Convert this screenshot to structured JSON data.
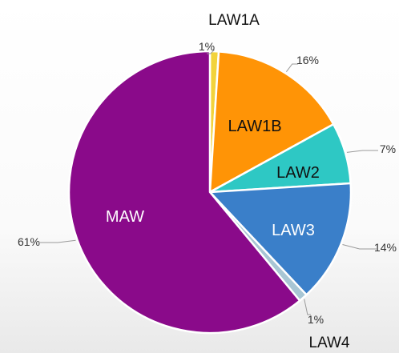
{
  "chart_data": {
    "type": "pie",
    "title": "",
    "slices": [
      {
        "label": "LAW1A",
        "value": 1,
        "pct_label": "1%",
        "color": "#f2d33c"
      },
      {
        "label": "LAW1B",
        "value": 16,
        "pct_label": "16%",
        "color": "#ff9406"
      },
      {
        "label": "LAW2",
        "value": 7,
        "pct_label": "7%",
        "color": "#2ec8c4"
      },
      {
        "label": "LAW3",
        "value": 14,
        "pct_label": "14%",
        "color": "#3a7fc9"
      },
      {
        "label": "LAW4",
        "value": 1,
        "pct_label": "1%",
        "color": "#a8c6d4"
      },
      {
        "label": "MAW",
        "value": 61,
        "pct_label": "61%",
        "color": "#8a0a8a"
      }
    ],
    "start_at": "top",
    "direction": "clockwise"
  }
}
